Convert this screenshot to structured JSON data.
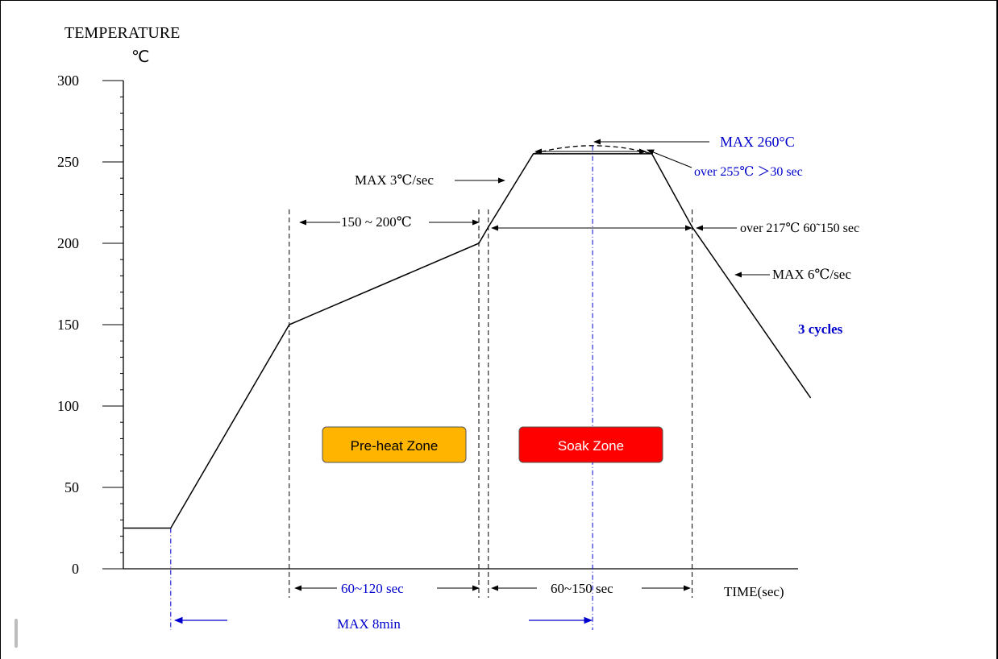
{
  "chart_data": {
    "type": "line",
    "ylabel_line1": "TEMPERATURE",
    "ylabel_line2": "℃",
    "xlabel": "TIME(sec)",
    "ylim": [
      0,
      300
    ],
    "y_ticks": [
      "0",
      "50",
      "100",
      "150",
      "200",
      "250",
      "300"
    ],
    "profile_points": [
      {
        "t": 0,
        "temp": 25
      },
      {
        "t": 20,
        "temp": 25
      },
      {
        "t": 70,
        "temp": 150
      },
      {
        "t": 150,
        "temp": 200
      },
      {
        "t": 154,
        "temp": 210
      },
      {
        "t": 173,
        "temp": 255
      },
      {
        "t": 223,
        "temp": 255
      },
      {
        "t": 240,
        "temp": 210
      },
      {
        "t": 290,
        "temp": 105
      }
    ],
    "peak": {
      "t_start": 173,
      "t_peak": 198,
      "t_end": 223,
      "temp": 260
    },
    "vertical_guides": [
      70,
      150,
      154,
      240
    ],
    "zones": [
      {
        "label": "Pre-heat Zone",
        "color": "#FFB400"
      },
      {
        "label": "Soak Zone",
        "color": "#FF0000"
      }
    ],
    "annotations": {
      "max_ramp_up": "MAX  3℃/sec",
      "preheat_range": "150 ~ 200℃",
      "max_peak": "MAX 260°C",
      "over_255": "over 255℃ ＞30 sec",
      "over_217": "over 217℃ 60˜150 sec",
      "max_ramp_down": "MAX  6℃/sec",
      "cycles": "3 cycles",
      "preheat_time": "60~120 sec",
      "soak_time": "60~150 sec",
      "max_total": "MAX 8min"
    },
    "colors": {
      "line": "#000000",
      "blue": "#0000CC",
      "preheat": "#FFB400",
      "soak": "#FF0000"
    }
  }
}
